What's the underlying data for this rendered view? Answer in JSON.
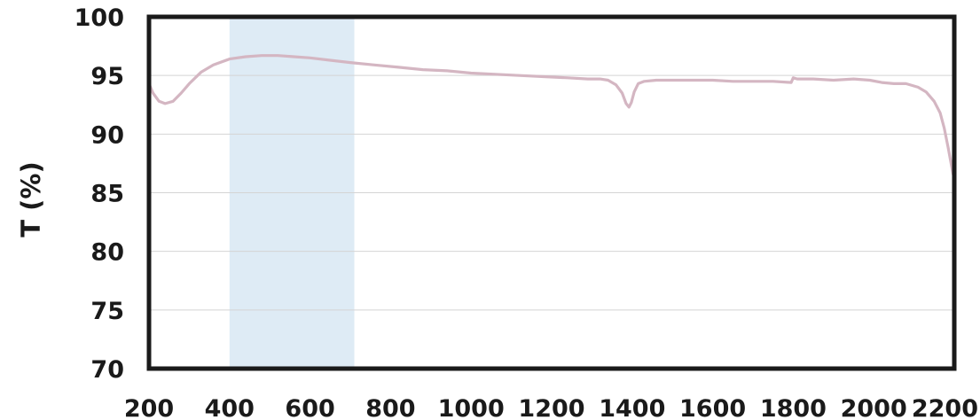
{
  "chart_data": {
    "type": "line",
    "title": "",
    "xlabel": "",
    "ylabel": "T (%)",
    "xlim": [
      200,
      2200
    ],
    "ylim": [
      70,
      100
    ],
    "xticks": [
      200,
      400,
      600,
      800,
      1000,
      1200,
      1400,
      1600,
      1800,
      2000,
      2200
    ],
    "yticks": [
      70,
      75,
      80,
      85,
      90,
      95,
      100
    ],
    "grid": "horizontal",
    "highlight_band": {
      "x_from": 400,
      "x_to": 710,
      "color": "#deebf5"
    },
    "line_color": "#d4b6c2",
    "series": [
      {
        "x": [
          200,
          210,
          225,
          240,
          260,
          280,
          300,
          330,
          360,
          400,
          440,
          480,
          520,
          560,
          600,
          650,
          700,
          760,
          820,
          880,
          940,
          1000,
          1060,
          1120,
          1180,
          1240,
          1290,
          1320,
          1340,
          1360,
          1375,
          1385,
          1392,
          1398,
          1405,
          1415,
          1430,
          1460,
          1500,
          1550,
          1600,
          1650,
          1700,
          1750,
          1795,
          1800,
          1810,
          1850,
          1900,
          1950,
          1990,
          2020,
          2050,
          2080,
          2110,
          2130,
          2150,
          2165,
          2175,
          2185,
          2192,
          2197,
          2200
        ],
        "y": [
          94.3,
          93.5,
          92.8,
          92.6,
          92.8,
          93.5,
          94.3,
          95.3,
          95.9,
          96.4,
          96.6,
          96.7,
          96.7,
          96.6,
          96.5,
          96.3,
          96.1,
          95.9,
          95.7,
          95.5,
          95.4,
          95.2,
          95.1,
          95.0,
          94.9,
          94.8,
          94.7,
          94.7,
          94.6,
          94.2,
          93.5,
          92.6,
          92.3,
          92.7,
          93.6,
          94.3,
          94.5,
          94.6,
          94.6,
          94.6,
          94.6,
          94.5,
          94.5,
          94.5,
          94.4,
          94.8,
          94.7,
          94.7,
          94.6,
          94.7,
          94.6,
          94.4,
          94.3,
          94.3,
          94.0,
          93.6,
          92.8,
          91.8,
          90.5,
          88.8,
          87.5,
          86.6,
          86.3
        ]
      }
    ]
  }
}
